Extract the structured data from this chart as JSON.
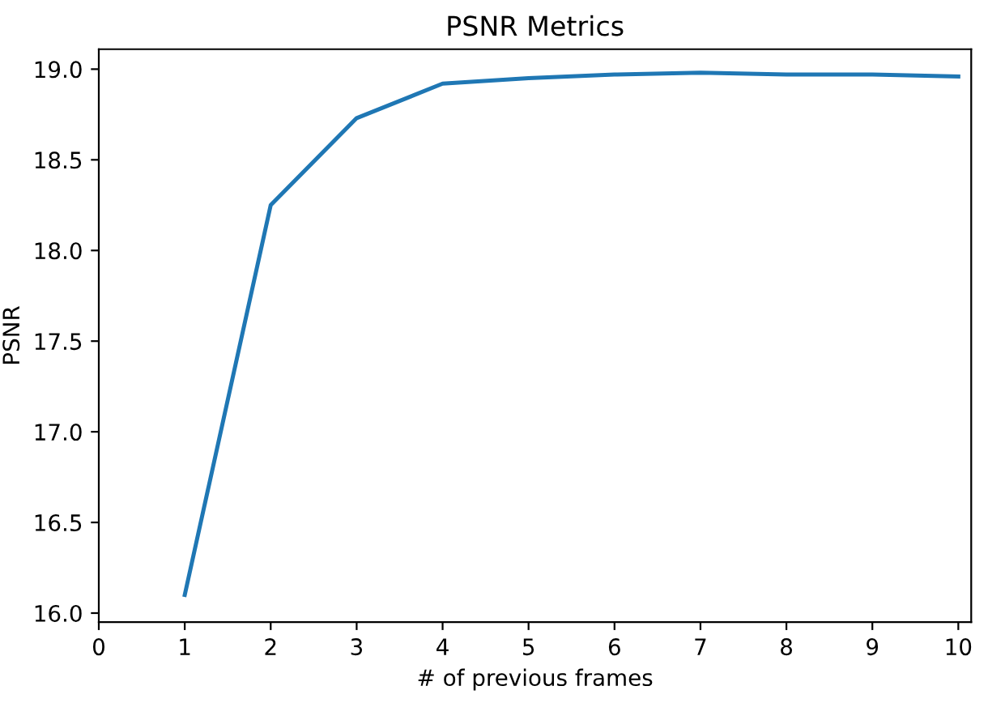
{
  "chart_data": {
    "type": "line",
    "title": "PSNR Metrics",
    "xlabel": "# of previous frames",
    "ylabel": "PSNR",
    "x": [
      1,
      2,
      3,
      4,
      5,
      6,
      7,
      8,
      9,
      10
    ],
    "series": [
      {
        "color": "#1f77b4",
        "values": [
          16.1,
          18.25,
          18.73,
          18.92,
          18.95,
          18.97,
          18.98,
          18.97,
          18.97,
          18.96
        ]
      }
    ],
    "xlim": [
      0,
      10.15
    ],
    "xticks": [
      0,
      1,
      2,
      3,
      4,
      5,
      6,
      7,
      8,
      9,
      10
    ],
    "ylim": [
      15.95,
      19.11
    ],
    "yticks": [
      {
        "value": 16,
        "label": "16.0"
      },
      {
        "value": 16.5,
        "label": "16.5"
      },
      {
        "value": 17,
        "label": "17.0"
      },
      {
        "value": 17.5,
        "label": "17.5"
      },
      {
        "value": 18,
        "label": "18.0"
      },
      {
        "value": 18.5,
        "label": "18.5"
      },
      {
        "value": 19,
        "label": "19.0"
      }
    ],
    "grid": false,
    "legend": false
  }
}
